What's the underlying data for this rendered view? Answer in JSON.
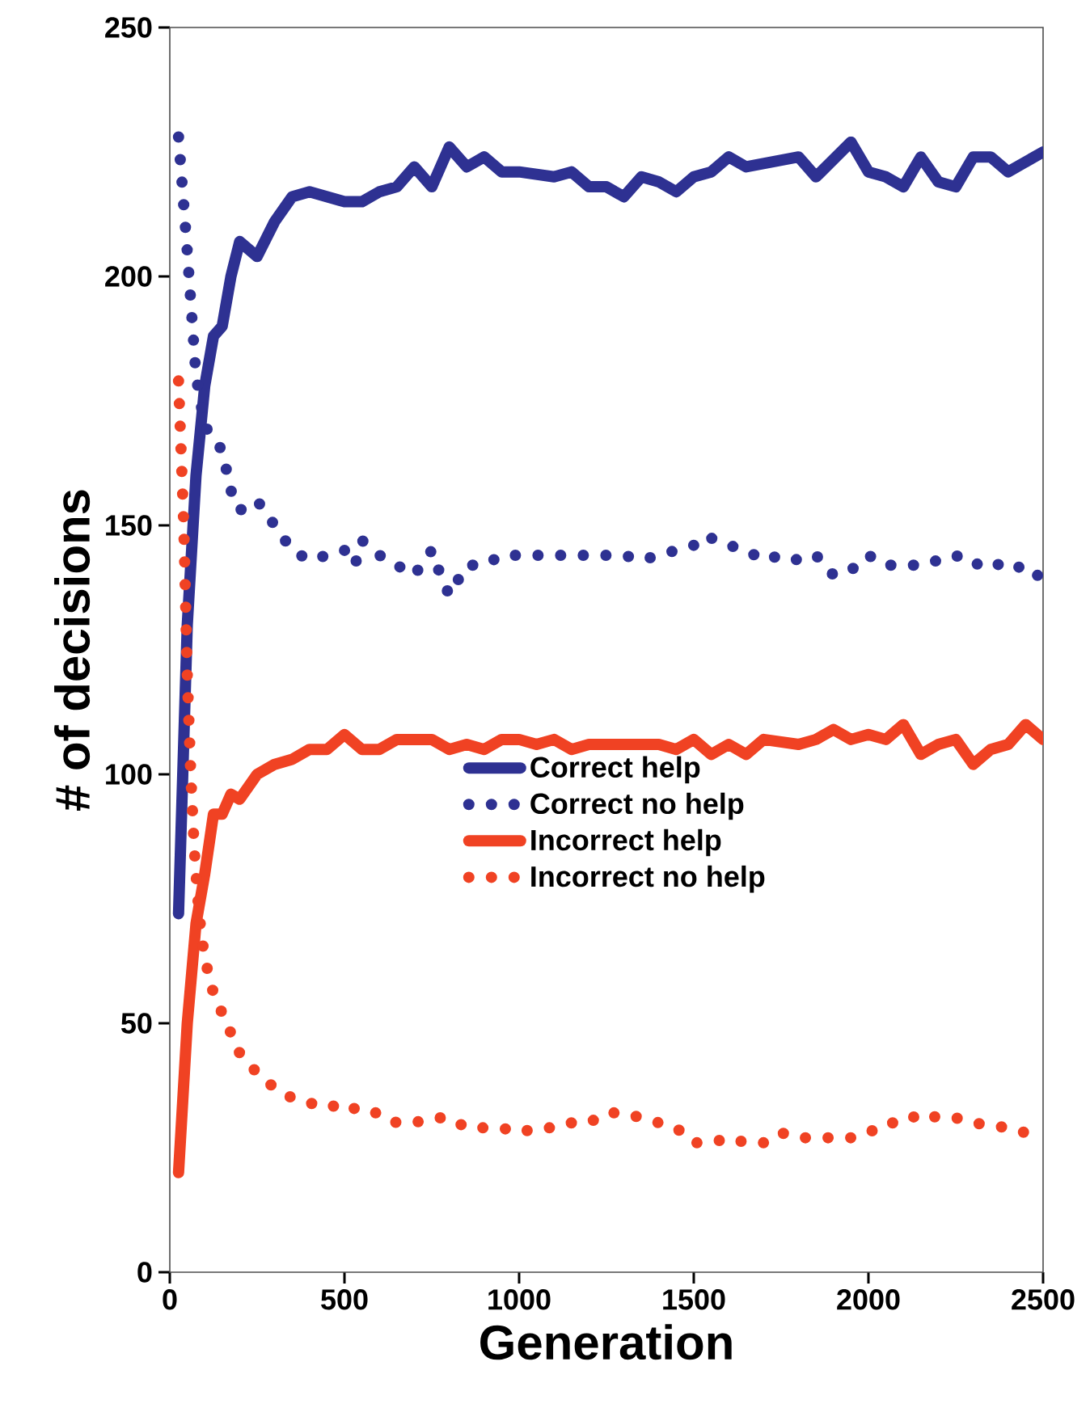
{
  "chart_data": {
    "type": "line",
    "xlabel": "Generation",
    "ylabel": "# of decisions",
    "xlim": [
      0,
      2500
    ],
    "ylim": [
      0,
      250
    ],
    "xticks": [
      0,
      500,
      1000,
      1500,
      2000,
      2500
    ],
    "yticks": [
      0,
      50,
      100,
      150,
      200,
      250
    ],
    "legend": "center",
    "grid": false,
    "series": [
      {
        "name": "Correct help",
        "color": "#2e3192",
        "line_style": "solid",
        "x": [
          25,
          50,
          75,
          100,
          125,
          150,
          175,
          200,
          250,
          300,
          350,
          400,
          500,
          550,
          600,
          650,
          700,
          750,
          800,
          850,
          900,
          950,
          1000,
          1100,
          1150,
          1200,
          1250,
          1300,
          1350,
          1400,
          1450,
          1500,
          1550,
          1600,
          1650,
          1800,
          1850,
          1950,
          2000,
          2050,
          2100,
          2150,
          2200,
          2250,
          2300,
          2350,
          2400,
          2500
        ],
        "values": [
          72,
          130,
          160,
          178,
          188,
          190,
          200,
          207,
          204,
          211,
          216,
          217,
          215,
          215,
          217,
          218,
          222,
          218,
          226,
          222,
          224,
          221,
          221,
          220,
          221,
          218,
          218,
          216,
          220,
          219,
          217,
          220,
          221,
          224,
          222,
          224,
          220,
          227,
          221,
          220,
          218,
          224,
          219,
          218,
          224,
          224,
          221,
          225
        ]
      },
      {
        "name": "Correct no help",
        "color": "#2e3192",
        "line_style": "dotted",
        "x": [
          25,
          50,
          75,
          100,
          150,
          175,
          200,
          250,
          300,
          350,
          400,
          450,
          500,
          530,
          550,
          600,
          650,
          700,
          750,
          775,
          800,
          825,
          850,
          900,
          950,
          1000,
          1050,
          1100,
          1150,
          1200,
          1250,
          1300,
          1350,
          1400,
          1450,
          1500,
          1530,
          1600,
          1650,
          1700,
          1750,
          1800,
          1850,
          1900,
          1950,
          2000,
          2050,
          2100,
          2150,
          2200,
          2250,
          2300,
          2350,
          2400,
          2450,
          2500
        ],
        "values": [
          228,
          205,
          180,
          170,
          165,
          157,
          153,
          155,
          150,
          145,
          143,
          144,
          145,
          142,
          147,
          144,
          142,
          140,
          145,
          140,
          136,
          139,
          142,
          142,
          144,
          144,
          144,
          144,
          144,
          144,
          144,
          144,
          143,
          144,
          145,
          146,
          148,
          146,
          145,
          143,
          144,
          143,
          144,
          140,
          141,
          144,
          142,
          142,
          142,
          143,
          144,
          142,
          143,
          141,
          142,
          139
        ]
      },
      {
        "name": "Incorrect help",
        "color": "#f04223",
        "line_style": "solid",
        "x": [
          25,
          50,
          75,
          100,
          125,
          150,
          175,
          200,
          250,
          300,
          350,
          400,
          450,
          500,
          550,
          600,
          650,
          700,
          750,
          800,
          850,
          900,
          950,
          1000,
          1050,
          1100,
          1150,
          1200,
          1300,
          1400,
          1450,
          1500,
          1550,
          1600,
          1650,
          1700,
          1800,
          1850,
          1900,
          1950,
          2000,
          2050,
          2100,
          2150,
          2200,
          2250,
          2300,
          2350,
          2400,
          2450,
          2500
        ],
        "values": [
          20,
          50,
          70,
          80,
          92,
          92,
          96,
          95,
          100,
          102,
          103,
          105,
          105,
          108,
          105,
          105,
          107,
          107,
          107,
          105,
          106,
          105,
          107,
          107,
          106,
          107,
          105,
          106,
          106,
          106,
          105,
          107,
          104,
          106,
          104,
          107,
          106,
          107,
          109,
          107,
          108,
          107,
          110,
          104,
          106,
          107,
          102,
          105,
          106,
          110,
          107
        ]
      },
      {
        "name": "Incorrect no help",
        "color": "#f04223",
        "line_style": "dotted",
        "x": [
          25,
          40,
          50,
          60,
          70,
          80,
          90,
          100,
          125,
          150,
          175,
          200,
          250,
          300,
          350,
          400,
          450,
          500,
          550,
          600,
          650,
          700,
          750,
          800,
          850,
          900,
          950,
          1000,
          1050,
          1100,
          1150,
          1200,
          1250,
          1300,
          1350,
          1400,
          1450,
          1500,
          1550,
          1600,
          1650,
          1700,
          1750,
          1800,
          1900,
          1950,
          2000,
          2050,
          2100,
          2150,
          2200,
          2250,
          2300,
          2400,
          2500
        ],
        "values": [
          179,
          150,
          120,
          100,
          85,
          75,
          68,
          63,
          56,
          52,
          48,
          44,
          40,
          37,
          35,
          34,
          33,
          34,
          32,
          32,
          30,
          30,
          31,
          31,
          29,
          29,
          29,
          28,
          29,
          29,
          30,
          30,
          32,
          32,
          31,
          30,
          29,
          26,
          26,
          27,
          26,
          26,
          28,
          27,
          27,
          27,
          28,
          30,
          30,
          32,
          31,
          31,
          30,
          29,
          27
        ]
      }
    ]
  }
}
